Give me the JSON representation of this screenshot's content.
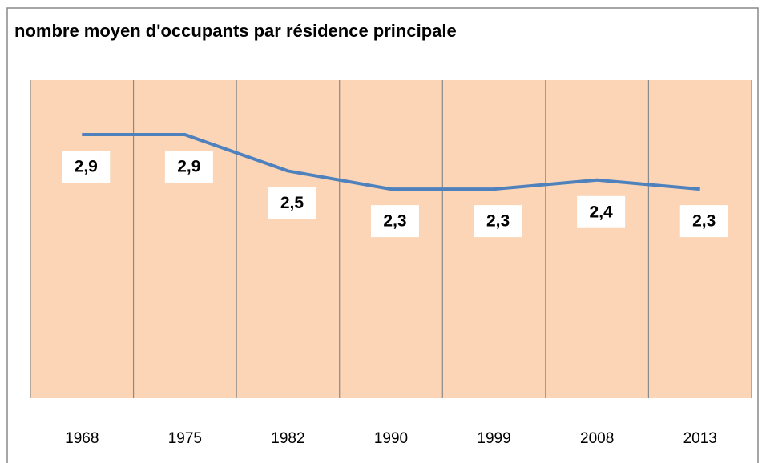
{
  "chart_data": {
    "type": "line",
    "title": "nombre moyen d'occupants par résidence principale",
    "categories": [
      "1968",
      "1975",
      "1982",
      "1990",
      "1999",
      "2008",
      "2013"
    ],
    "series": [
      {
        "color": "#4f81bd",
        "values": [
          2.9,
          2.9,
          2.5,
          2.3,
          2.3,
          2.4,
          2.3
        ],
        "value_labels": [
          "2,9",
          "2,9",
          "2,5",
          "2,3",
          "2,3",
          "2,4",
          "2,3"
        ]
      }
    ],
    "ylim": [
      0,
      3.5
    ],
    "background": "#fbd5b5"
  }
}
